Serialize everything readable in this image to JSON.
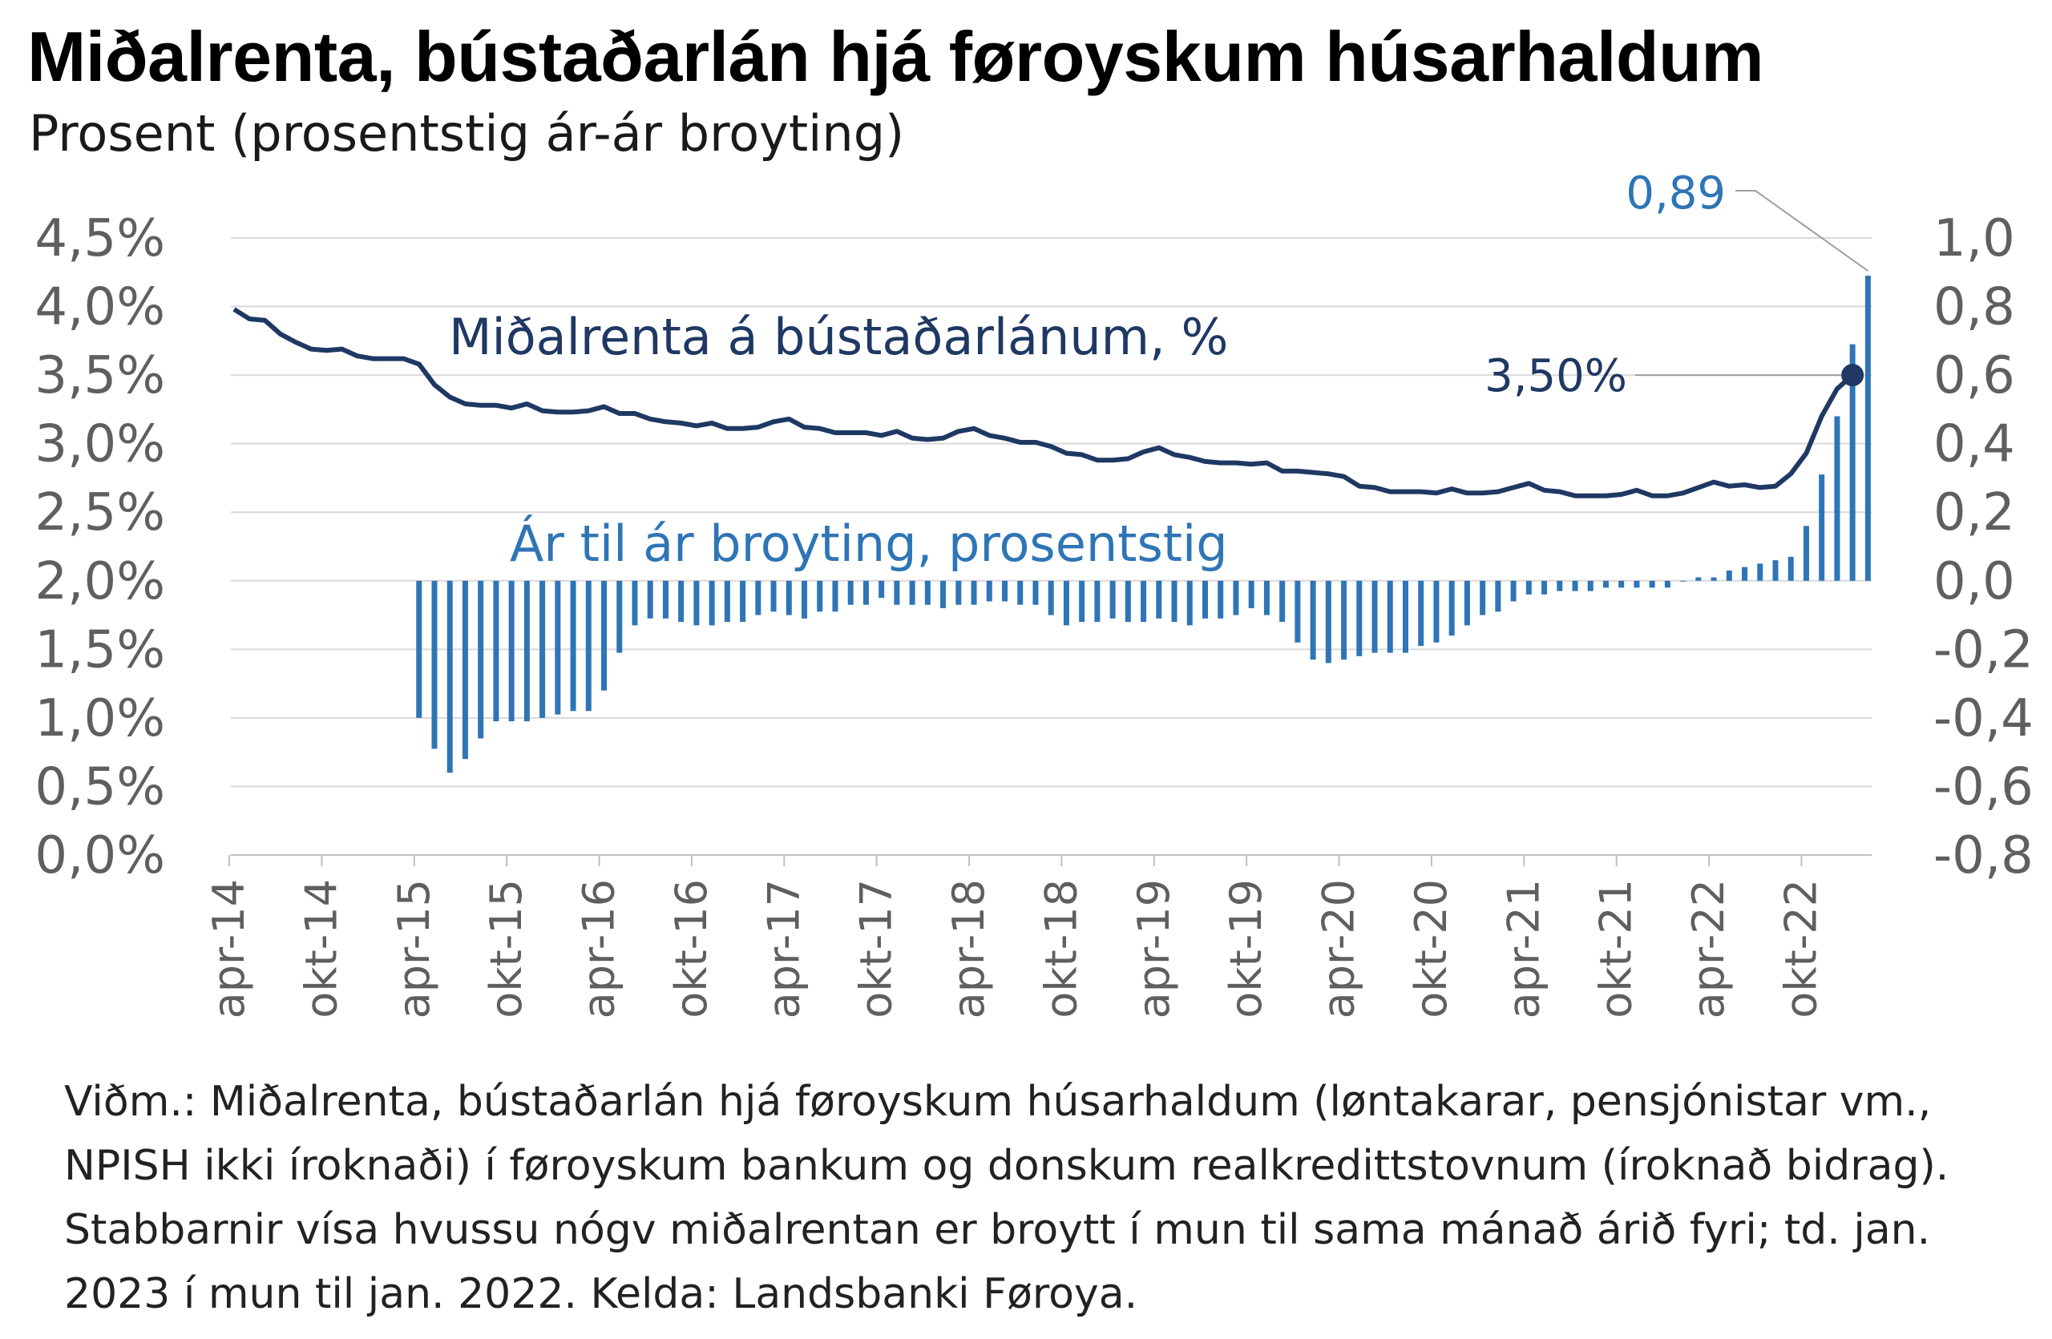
{
  "title": "Miðalrenta, bústaðarlán hjá føroyskum húsarhaldum",
  "subtitle": "Prosent (prosentstig ár-ár broyting)",
  "note": "Viðm.: Miðalrenta, bústaðarlán hjá føroyskum húsarhaldum (løntakarar, pensjónistar vm., NPISH ikki íroknaði) í føroyskum bankum og donskum realkredittstovnum (íroknað bidrag). Stabbarnir vísa hvussu nógv miðalrentan er broytt í mun til sama mánað árið fyri; td. jan. 2023 í mun til jan. 2022. Kelda: Landsbanki Føroya.",
  "colors": {
    "line": "#1f3864",
    "bars": "#2e75b6",
    "grid": "#d9d9d9",
    "axis_text": "#5f5f5f"
  },
  "chart_data": {
    "type": "bar+line",
    "x_tick_labels": [
      "apr-14",
      "okt-14",
      "apr-15",
      "okt-15",
      "apr-16",
      "okt-16",
      "apr-17",
      "okt-17",
      "apr-18",
      "okt-18",
      "apr-19",
      "okt-19",
      "apr-20",
      "okt-20",
      "apr-21",
      "okt-21",
      "apr-22",
      "okt-22"
    ],
    "y_left": {
      "ticks": [
        "0,0%",
        "0,5%",
        "1,0%",
        "1,5%",
        "2,0%",
        "2,5%",
        "3,0%",
        "3,5%",
        "4,0%",
        "4,5%"
      ],
      "range": [
        0,
        4.5
      ]
    },
    "y_right": {
      "ticks": [
        "-0,8",
        "-0,6",
        "-0,4",
        "-0,2",
        "0,0",
        "0,2",
        "0,4",
        "0,6",
        "0,8",
        "1,0"
      ],
      "range": [
        -0.8,
        1.0
      ]
    },
    "gridlines": true,
    "series": [
      {
        "name": "Miðalrenta á bústaðarlánum, %",
        "type": "line",
        "axis": "left",
        "start": "apr-14",
        "values": [
          3.98,
          3.91,
          3.9,
          3.8,
          3.74,
          3.69,
          3.68,
          3.69,
          3.64,
          3.62,
          3.62,
          3.62,
          3.58,
          3.43,
          3.34,
          3.29,
          3.28,
          3.28,
          3.26,
          3.29,
          3.24,
          3.23,
          3.23,
          3.24,
          3.27,
          3.22,
          3.22,
          3.18,
          3.16,
          3.15,
          3.13,
          3.15,
          3.11,
          3.11,
          3.12,
          3.16,
          3.18,
          3.12,
          3.11,
          3.08,
          3.08,
          3.08,
          3.06,
          3.09,
          3.04,
          3.03,
          3.04,
          3.09,
          3.11,
          3.06,
          3.04,
          3.01,
          3.01,
          2.98,
          2.93,
          2.92,
          2.88,
          2.88,
          2.89,
          2.94,
          2.97,
          2.92,
          2.9,
          2.87,
          2.86,
          2.86,
          2.85,
          2.86,
          2.8,
          2.8,
          2.79,
          2.78,
          2.76,
          2.69,
          2.68,
          2.65,
          2.65,
          2.65,
          2.64,
          2.67,
          2.64,
          2.64,
          2.65,
          2.68,
          2.71,
          2.66,
          2.65,
          2.62,
          2.62,
          2.62,
          2.63,
          2.66,
          2.62,
          2.62,
          2.64,
          2.68,
          2.72,
          2.69,
          2.7,
          2.68,
          2.69,
          2.78,
          2.93,
          3.2,
          3.4,
          3.5
        ],
        "annotation": "3,50%"
      },
      {
        "name": "Ár til ár broyting, prosentstig",
        "type": "bar",
        "axis": "right",
        "start": "apr-15",
        "values": [
          -0.4,
          -0.49,
          -0.56,
          -0.52,
          -0.46,
          -0.41,
          -0.41,
          -0.41,
          -0.4,
          -0.39,
          -0.38,
          -0.38,
          -0.32,
          -0.21,
          -0.13,
          -0.11,
          -0.11,
          -0.12,
          -0.13,
          -0.13,
          -0.12,
          -0.12,
          -0.1,
          -0.09,
          -0.1,
          -0.11,
          -0.09,
          -0.09,
          -0.07,
          -0.07,
          -0.05,
          -0.07,
          -0.07,
          -0.07,
          -0.08,
          -0.07,
          -0.07,
          -0.06,
          -0.06,
          -0.07,
          -0.07,
          -0.1,
          -0.13,
          -0.12,
          -0.12,
          -0.11,
          -0.12,
          -0.12,
          -0.11,
          -0.12,
          -0.13,
          -0.11,
          -0.11,
          -0.1,
          -0.08,
          -0.1,
          -0.12,
          -0.18,
          -0.23,
          -0.24,
          -0.23,
          -0.22,
          -0.21,
          -0.21,
          -0.21,
          -0.19,
          -0.18,
          -0.16,
          -0.13,
          -0.1,
          -0.09,
          -0.06,
          -0.04,
          -0.04,
          -0.03,
          -0.03,
          -0.03,
          -0.02,
          -0.02,
          -0.02,
          -0.02,
          -0.02,
          0.0,
          0.01,
          0.01,
          0.03,
          0.04,
          0.05,
          0.06,
          0.07,
          0.16,
          0.31,
          0.48,
          0.69,
          0.89
        ],
        "annotation": "0,89"
      }
    ]
  }
}
